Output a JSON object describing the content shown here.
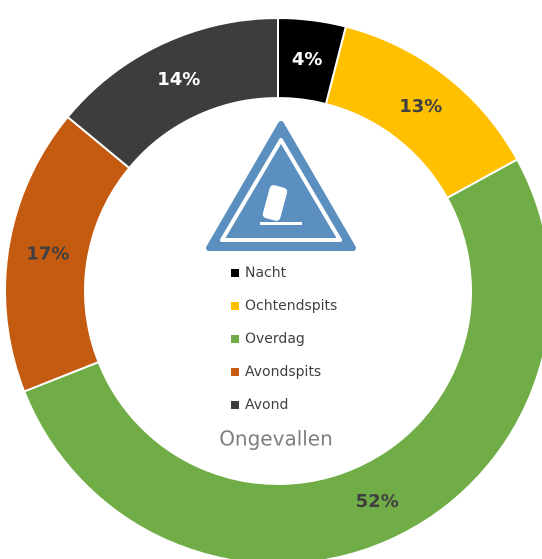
{
  "chart_data": {
    "type": "donut",
    "title": "Ongevallen",
    "categories": [
      "Nacht",
      "Ochtendspits",
      "Overdag",
      "Avondspits",
      "Avond"
    ],
    "values": [
      4,
      13,
      52,
      17,
      14
    ],
    "value_labels": [
      "4%",
      "13%",
      "52%",
      "17%",
      "14%"
    ],
    "colors": [
      "#000000",
      "#ffc000",
      "#70ad47",
      "#c55a11",
      "#3d3d3d"
    ],
    "legend": "center"
  }
}
